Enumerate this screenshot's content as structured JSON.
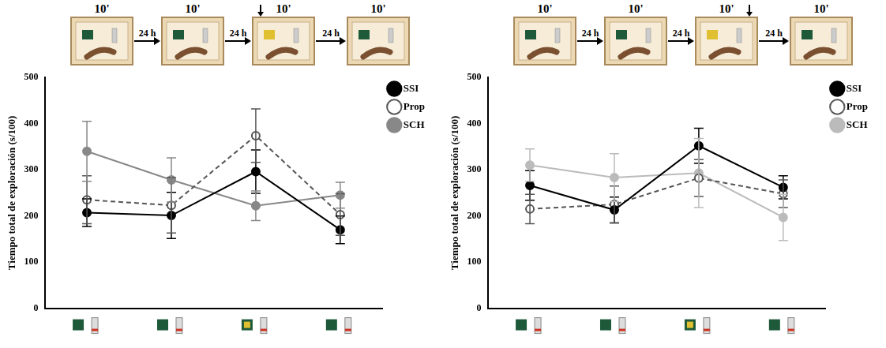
{
  "chart_data": [
    {
      "type": "line",
      "protocol": {
        "sessions": [
          "10'",
          "10'",
          "10'",
          "10'"
        ],
        "intervals": [
          "24 h",
          "24 h",
          "24 h"
        ]
      },
      "y_label": "Tiempo total de exploración (s/100)",
      "categories": [
        null,
        null,
        null,
        null
      ],
      "ylim": [
        0,
        500
      ],
      "yticks": [
        0,
        100,
        200,
        300,
        400,
        500
      ],
      "grid": false,
      "legend": "right",
      "series": [
        {
          "name": "SSI",
          "color": "#000000",
          "marker": "circle",
          "line_style": "solid",
          "values": [
            207,
            201,
            296,
            170
          ],
          "errors": [
            30,
            50,
            47,
            30
          ]
        },
        {
          "name": "Prop",
          "color": "#555555",
          "marker": "open_circle",
          "line_style": "dashed",
          "values": [
            235,
            223,
            374,
            203
          ],
          "errors": [
            52,
            60,
            58,
            45
          ]
        },
        {
          "name": "SCH",
          "color": "#888888",
          "marker": "circle",
          "line_style": "solid",
          "values": [
            340,
            278,
            222,
            245
          ],
          "errors": [
            65,
            48,
            32,
            28
          ]
        }
      ]
    },
    {
      "type": "line",
      "protocol": {
        "sessions": [
          "10'",
          "10'",
          "10'",
          "10'"
        ],
        "intervals": [
          "24 h",
          "24 h",
          "24 h"
        ]
      },
      "y_label": "Tiempo total de exploración (s/100)",
      "categories": [
        null,
        null,
        null,
        null
      ],
      "ylim": [
        0,
        500
      ],
      "yticks": [
        0,
        100,
        200,
        300,
        400,
        500
      ],
      "grid": false,
      "legend": "right",
      "series": [
        {
          "name": "SSI",
          "color": "#000000",
          "marker": "circle",
          "line_style": "solid",
          "values": [
            266,
            213,
            352,
            262
          ],
          "errors": [
            32,
            28,
            38,
            25
          ]
        },
        {
          "name": "Prop",
          "color": "#555555",
          "marker": "open_circle",
          "line_style": "dashed",
          "values": [
            215,
            225,
            282,
            248
          ],
          "errors": [
            32,
            40,
            40,
            30
          ]
        },
        {
          "name": "SCH",
          "color": "#bbbbbb",
          "marker": "circle",
          "line_style": "solid",
          "values": [
            310,
            283,
            293,
            197
          ],
          "errors": [
            35,
            52,
            75,
            50
          ]
        }
      ]
    }
  ]
}
